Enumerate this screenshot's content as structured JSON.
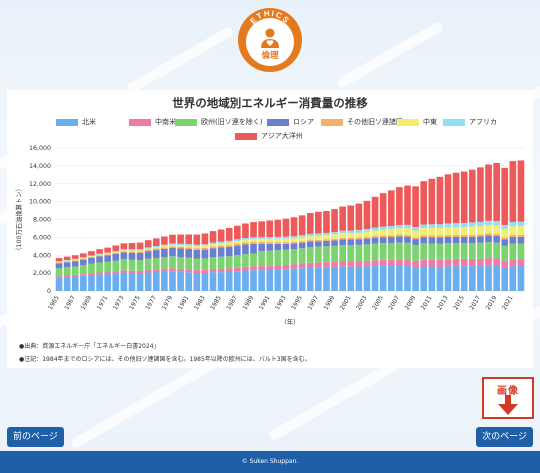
{
  "badge": {
    "ring_text": "ETHICS",
    "label": "倫理",
    "color": "#e47a1e"
  },
  "chart_data": {
    "type": "bar",
    "stacked": true,
    "title": "世界の地域別エネルギー消費量の推移",
    "ylabel": "（100万石油換算トン）",
    "xlabel": "（年）",
    "ylim": [
      0,
      16000
    ],
    "yticks": [
      "0",
      "2,000",
      "4,000",
      "6,000",
      "8,000",
      "10,000",
      "12,000",
      "14,000",
      "16,000"
    ],
    "legend_placement": "top",
    "grid": true,
    "categories": [
      1965,
      1966,
      1967,
      1968,
      1969,
      1970,
      1971,
      1972,
      1973,
      1974,
      1975,
      1976,
      1977,
      1978,
      1979,
      1980,
      1981,
      1982,
      1983,
      1984,
      1985,
      1986,
      1987,
      1988,
      1989,
      1990,
      1991,
      1992,
      1993,
      1994,
      1995,
      1996,
      1997,
      1998,
      1999,
      2000,
      2001,
      2002,
      2003,
      2004,
      2005,
      2006,
      2007,
      2008,
      2009,
      2010,
      2011,
      2012,
      2013,
      2014,
      2015,
      2016,
      2017,
      2018,
      2019,
      2020,
      2021,
      2022
    ],
    "xtick_labels": [
      "1965",
      "1967",
      "1969",
      "1971",
      "1973",
      "1975",
      "1977",
      "1979",
      "1981",
      "1983",
      "1985",
      "1987",
      "1989",
      "1991",
      "1993",
      "1995",
      "1997",
      "1999",
      "2001",
      "2003",
      "2005",
      "2007",
      "2009",
      "2011",
      "2013",
      "2015",
      "2017",
      "2019",
      "2021"
    ],
    "series": [
      {
        "name": "北米",
        "color": "#6aaef0",
        "values": [
          1500,
          1560,
          1620,
          1700,
          1790,
          1860,
          1900,
          1980,
          2060,
          2010,
          1970,
          2060,
          2120,
          2180,
          2200,
          2140,
          2090,
          2010,
          2010,
          2110,
          2110,
          2120,
          2200,
          2290,
          2330,
          2340,
          2350,
          2390,
          2440,
          2500,
          2550,
          2620,
          2650,
          2650,
          2700,
          2760,
          2710,
          2740,
          2760,
          2810,
          2820,
          2800,
          2850,
          2790,
          2650,
          2740,
          2740,
          2680,
          2750,
          2790,
          2780,
          2780,
          2790,
          2880,
          2850,
          2640,
          2760,
          2800
        ]
      },
      {
        "name": "中南米",
        "color": "#f07aa8",
        "values": [
          160,
          170,
          180,
          190,
          200,
          210,
          220,
          235,
          250,
          260,
          270,
          285,
          300,
          315,
          330,
          345,
          350,
          355,
          360,
          370,
          380,
          395,
          410,
          425,
          440,
          450,
          460,
          470,
          480,
          500,
          515,
          535,
          555,
          570,
          580,
          595,
          600,
          610,
          620,
          645,
          670,
          690,
          710,
          730,
          720,
          760,
          780,
          800,
          810,
          815,
          815,
          810,
          810,
          805,
          805,
          760,
          800,
          820
        ]
      },
      {
        "name": "欧州(旧ソ連を除く)",
        "color": "#7bd46e",
        "values": [
          900,
          930,
          950,
          1000,
          1060,
          1120,
          1150,
          1190,
          1240,
          1220,
          1200,
          1260,
          1280,
          1310,
          1350,
          1320,
          1290,
          1270,
          1280,
          1310,
          1350,
          1370,
          1400,
          1410,
          1410,
          1690,
          1700,
          1700,
          1690,
          1690,
          1720,
          1760,
          1760,
          1780,
          1780,
          1800,
          1820,
          1810,
          1840,
          1860,
          1870,
          1880,
          1870,
          1870,
          1780,
          1840,
          1800,
          1800,
          1790,
          1740,
          1760,
          1780,
          1800,
          1790,
          1760,
          1650,
          1730,
          1680
        ]
      },
      {
        "name": "ロシア",
        "color": "#6a7fd0",
        "values": [
          540,
          560,
          580,
          610,
          640,
          670,
          700,
          730,
          760,
          790,
          820,
          850,
          880,
          900,
          930,
          950,
          960,
          970,
          980,
          1000,
          1030,
          1050,
          1070,
          1080,
          1080,
          780,
          760,
          720,
          680,
          640,
          630,
          620,
          600,
          600,
          610,
          620,
          630,
          630,
          640,
          650,
          660,
          670,
          680,
          690,
          660,
          690,
          700,
          710,
          700,
          700,
          690,
          700,
          710,
          730,
          740,
          720,
          760,
          750
        ]
      },
      {
        "name": "その他旧ソ連諸国",
        "color": "#f7b067",
        "values": [
          110,
          115,
          120,
          125,
          130,
          135,
          140,
          145,
          150,
          155,
          160,
          165,
          170,
          175,
          180,
          185,
          190,
          195,
          200,
          205,
          210,
          215,
          220,
          225,
          230,
          220,
          210,
          195,
          180,
          170,
          165,
          160,
          160,
          160,
          165,
          170,
          175,
          180,
          185,
          190,
          195,
          200,
          205,
          210,
          200,
          210,
          215,
          220,
          220,
          220,
          220,
          225,
          225,
          230,
          230,
          220,
          230,
          230
        ]
      },
      {
        "name": "中東",
        "color": "#f3ee6e",
        "values": [
          50,
          55,
          60,
          65,
          70,
          75,
          80,
          90,
          100,
          110,
          120,
          135,
          150,
          165,
          180,
          190,
          200,
          215,
          230,
          245,
          260,
          275,
          290,
          305,
          320,
          330,
          345,
          360,
          380,
          400,
          420,
          440,
          460,
          480,
          500,
          520,
          540,
          560,
          580,
          610,
          640,
          670,
          700,
          730,
          760,
          800,
          820,
          840,
          860,
          880,
          900,
          920,
          930,
          940,
          950,
          920,
          960,
          980
        ]
      },
      {
        "name": "アフリカ",
        "color": "#92dff3",
        "values": [
          75,
          80,
          85,
          90,
          95,
          100,
          105,
          110,
          115,
          120,
          125,
          130,
          135,
          140,
          150,
          155,
          165,
          170,
          175,
          180,
          185,
          190,
          195,
          200,
          205,
          210,
          215,
          220,
          225,
          230,
          240,
          250,
          255,
          260,
          270,
          280,
          290,
          300,
          315,
          330,
          340,
          350,
          360,
          380,
          390,
          400,
          405,
          420,
          430,
          440,
          450,
          460,
          470,
          480,
          490,
          470,
          490,
          500
        ]
      },
      {
        "name": "アジア大洋州",
        "color": "#ee5a5a",
        "values": [
          350,
          380,
          400,
          430,
          470,
          510,
          560,
          610,
          660,
          700,
          750,
          800,
          850,
          920,
          980,
          1030,
          1080,
          1130,
          1200,
          1280,
          1360,
          1440,
          1520,
          1620,
          1700,
          1780,
          1850,
          1920,
          2020,
          2120,
          2220,
          2340,
          2420,
          2450,
          2560,
          2700,
          2800,
          2950,
          3150,
          3450,
          3750,
          4000,
          4250,
          4400,
          4550,
          4850,
          5100,
          5300,
          5500,
          5650,
          5750,
          5900,
          6100,
          6300,
          6500,
          6400,
          6800,
          6850
        ]
      }
    ]
  },
  "notes": {
    "source": "●出典：資源エネルギー庁「エネルギー白書2024」",
    "annotation": "●注記：1984年までのロシアには、その他旧ソ連諸国を含む。1985年以降の欧州には、バルト3国を含む。"
  },
  "nav": {
    "prev": "前のページ",
    "next": "次のページ"
  },
  "image_button": {
    "label": "画像",
    "color": "#d23a26"
  },
  "footer": {
    "copyright": "© Suken Shuppan."
  }
}
